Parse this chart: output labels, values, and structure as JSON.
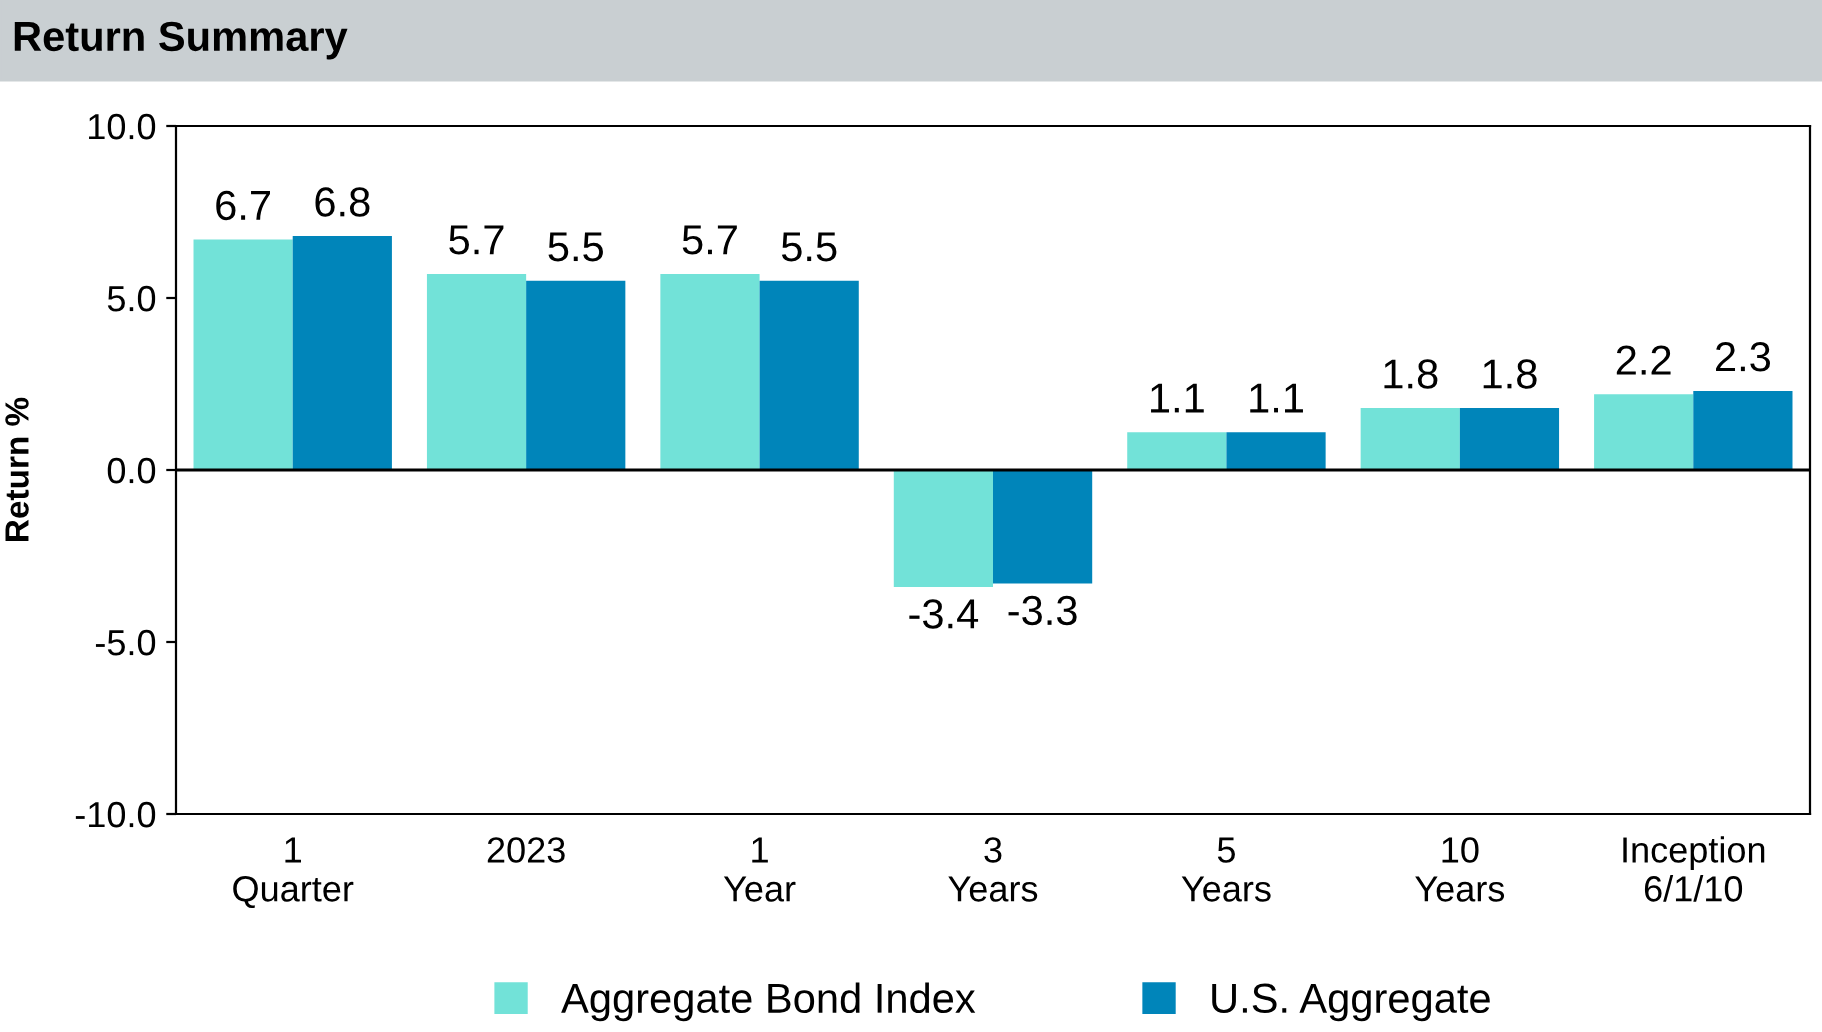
{
  "chart_data": {
    "type": "bar",
    "title": "Return Summary",
    "ylabel": "Return %",
    "categories": [
      "1\nQuarter",
      "2023",
      "1\nYear",
      "3\nYears",
      "5\nYears",
      "10\nYears",
      "Inception\n6/1/10"
    ],
    "series": [
      {
        "name": "Aggregate Bond Index",
        "color": "#72e2d8",
        "values": [
          6.7,
          5.7,
          5.7,
          -3.4,
          1.1,
          1.8,
          2.2
        ]
      },
      {
        "name": "U.S. Aggregate",
        "color": "#0085ba",
        "values": [
          6.8,
          5.5,
          5.5,
          -3.3,
          1.1,
          1.8,
          2.3
        ]
      }
    ],
    "ylim": [
      -10,
      10
    ],
    "yticks": [
      {
        "value": -10,
        "label": "-10.0"
      },
      {
        "value": -5,
        "label": "-5.0"
      },
      {
        "value": 0,
        "label": "0.0"
      },
      {
        "value": 5,
        "label": "5.0"
      },
      {
        "value": 10,
        "label": "10.0"
      }
    ],
    "ref_lines": [
      {
        "axis": "y",
        "value": 0,
        "color": "#000000"
      }
    ],
    "data_labels": true,
    "grid": false,
    "legend": "bottom"
  }
}
